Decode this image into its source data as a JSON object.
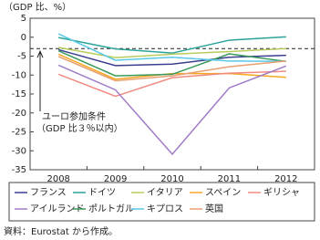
{
  "chart_data": {
    "type": "line",
    "title": "（GDP 比、%）",
    "categories": [
      "2008",
      "2009",
      "2010",
      "2011",
      "2012"
    ],
    "series": [
      {
        "name": "フランス",
        "color": "#3b3f8f",
        "values": [
          -3.3,
          -7.5,
          -7.1,
          -5.3,
          -4.8
        ]
      },
      {
        "name": "ドイツ",
        "color": "#2aa39a",
        "values": [
          -0.1,
          -3.1,
          -4.2,
          -0.8,
          0.1
        ]
      },
      {
        "name": "イタリア",
        "color": "#b8cc5c",
        "values": [
          -2.7,
          -5.4,
          -4.5,
          -3.8,
          -3.0
        ]
      },
      {
        "name": "スペイン",
        "color": "#f5a623",
        "values": [
          -4.5,
          -11.1,
          -9.6,
          -9.6,
          -10.6
        ]
      },
      {
        "name": "ギリシャ",
        "color": "#f08a80",
        "values": [
          -9.8,
          -15.6,
          -10.7,
          -9.5,
          -9.0
        ]
      },
      {
        "name": "アイルランド",
        "color": "#a07cc8",
        "values": [
          -7.4,
          -13.9,
          -30.9,
          -13.4,
          -7.6
        ]
      },
      {
        "name": "ポルトガル",
        "color": "#3a9a5a",
        "values": [
          -3.6,
          -10.2,
          -9.8,
          -4.4,
          -6.4
        ]
      },
      {
        "name": "キプロス",
        "color": "#5bc8e8",
        "values": [
          0.9,
          -6.1,
          -5.3,
          -6.3,
          -6.4
        ]
      },
      {
        "name": "英国",
        "color": "#e8a070",
        "values": [
          -5.1,
          -11.5,
          -10.2,
          -7.8,
          -6.3
        ]
      }
    ],
    "ylim": [
      -35,
      5
    ],
    "yticks": [
      5,
      0,
      -5,
      -10,
      -15,
      -20,
      -25,
      -30,
      -35
    ],
    "reference_line": -3,
    "annotation": [
      "ユーロ参加条件",
      "（GDP 比３％以内）"
    ],
    "source": "資料：Eurostat から作成。"
  }
}
